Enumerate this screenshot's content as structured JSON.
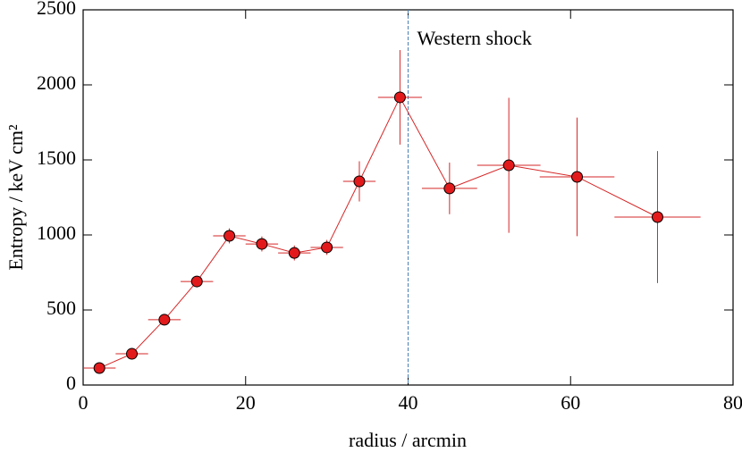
{
  "chart_data": {
    "type": "errorbar",
    "xlabel": "radius / arcmin",
    "ylabel": "Entropy / keV cm²",
    "x": [
      2,
      6,
      10,
      14,
      18,
      22,
      26,
      30,
      34,
      39,
      45.1,
      52.4,
      60.8,
      70.7
    ],
    "xerr": [
      2,
      2,
      2,
      2,
      2,
      2,
      2,
      2,
      2,
      2.7,
      3.4,
      3.9,
      4.6,
      5.3
    ],
    "y": [
      113,
      208,
      435,
      690,
      994,
      940,
      880,
      917,
      1357,
      1917,
      1310,
      1464,
      1387,
      1119
    ],
    "yerr": [
      15,
      20,
      20,
      25,
      50,
      50,
      50,
      50,
      134,
      315,
      172,
      450,
      395,
      440
    ],
    "color": "#e31a1c",
    "line_color": "#d62728",
    "xlim": [
      0,
      80
    ],
    "xticks": [
      0,
      20,
      40,
      60,
      80
    ],
    "ylim": [
      0,
      2500
    ],
    "yticks": [
      0,
      500,
      1000,
      1500,
      2000,
      2500
    ],
    "annotations": [
      {
        "x": 40,
        "text": "Western shock",
        "color": "#4a7fb5",
        "dashed": true
      }
    ]
  }
}
